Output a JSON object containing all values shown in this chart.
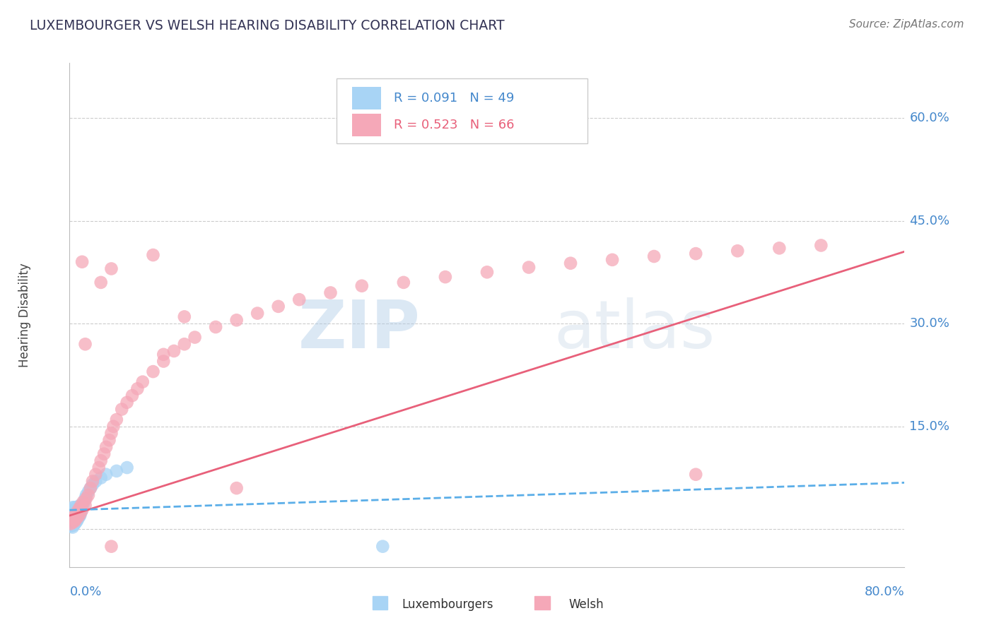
{
  "title": "LUXEMBOURGER VS WELSH HEARING DISABILITY CORRELATION CHART",
  "source": "Source: ZipAtlas.com",
  "ylabel": "Hearing Disability",
  "xlim": [
    0.0,
    0.8
  ],
  "ylim": [
    -0.055,
    0.68
  ],
  "yticks": [
    0.0,
    0.15,
    0.3,
    0.45,
    0.6
  ],
  "ytick_labels": [
    "",
    "15.0%",
    "30.0%",
    "45.0%",
    "60.0%"
  ],
  "luxembourgers_R": 0.091,
  "luxembourgers_N": 49,
  "welsh_R": 0.523,
  "welsh_N": 66,
  "color_lux": "#a8d4f5",
  "color_welsh": "#f5a8b8",
  "color_lux_line": "#5baee8",
  "color_welsh_line": "#e8607a",
  "color_text_blue": "#4488cc",
  "color_title": "#333355",
  "watermark_color": "#cce0f0",
  "background_color": "#ffffff",
  "grid_color": "#cccccc",
  "lux_scatter_x": [
    0.001,
    0.001,
    0.001,
    0.002,
    0.002,
    0.002,
    0.002,
    0.002,
    0.003,
    0.003,
    0.003,
    0.003,
    0.003,
    0.003,
    0.004,
    0.004,
    0.004,
    0.004,
    0.005,
    0.005,
    0.005,
    0.005,
    0.006,
    0.006,
    0.006,
    0.007,
    0.007,
    0.007,
    0.008,
    0.008,
    0.009,
    0.009,
    0.01,
    0.01,
    0.011,
    0.012,
    0.013,
    0.014,
    0.015,
    0.016,
    0.018,
    0.02,
    0.022,
    0.025,
    0.03,
    0.035,
    0.045,
    0.055,
    0.3
  ],
  "lux_scatter_y": [
    0.005,
    0.01,
    0.015,
    0.005,
    0.008,
    0.012,
    0.018,
    0.025,
    0.003,
    0.008,
    0.012,
    0.018,
    0.025,
    0.032,
    0.006,
    0.012,
    0.018,
    0.028,
    0.008,
    0.015,
    0.022,
    0.032,
    0.01,
    0.018,
    0.028,
    0.012,
    0.02,
    0.032,
    0.015,
    0.025,
    0.018,
    0.03,
    0.02,
    0.035,
    0.025,
    0.03,
    0.035,
    0.04,
    0.045,
    0.05,
    0.055,
    0.06,
    0.065,
    0.07,
    0.075,
    0.08,
    0.085,
    0.09,
    -0.025
  ],
  "welsh_scatter_x": [
    0.001,
    0.002,
    0.003,
    0.004,
    0.005,
    0.005,
    0.006,
    0.007,
    0.008,
    0.009,
    0.01,
    0.011,
    0.012,
    0.013,
    0.015,
    0.016,
    0.018,
    0.02,
    0.022,
    0.025,
    0.028,
    0.03,
    0.033,
    0.035,
    0.038,
    0.04,
    0.042,
    0.045,
    0.05,
    0.055,
    0.06,
    0.065,
    0.07,
    0.08,
    0.09,
    0.1,
    0.11,
    0.12,
    0.14,
    0.16,
    0.18,
    0.2,
    0.22,
    0.25,
    0.28,
    0.32,
    0.36,
    0.4,
    0.44,
    0.48,
    0.52,
    0.56,
    0.6,
    0.64,
    0.68,
    0.72,
    0.04,
    0.08,
    0.04,
    0.6,
    0.16,
    0.015,
    0.09,
    0.11,
    0.012,
    0.03
  ],
  "welsh_scatter_y": [
    0.008,
    0.015,
    0.01,
    0.018,
    0.012,
    0.02,
    0.015,
    0.025,
    0.018,
    0.03,
    0.022,
    0.035,
    0.028,
    0.04,
    0.035,
    0.045,
    0.05,
    0.06,
    0.07,
    0.08,
    0.09,
    0.1,
    0.11,
    0.12,
    0.13,
    0.14,
    0.15,
    0.16,
    0.175,
    0.185,
    0.195,
    0.205,
    0.215,
    0.23,
    0.245,
    0.26,
    0.27,
    0.28,
    0.295,
    0.305,
    0.315,
    0.325,
    0.335,
    0.345,
    0.355,
    0.36,
    0.368,
    0.375,
    0.382,
    0.388,
    0.393,
    0.398,
    0.402,
    0.406,
    0.41,
    0.414,
    0.38,
    0.4,
    -0.025,
    0.08,
    0.06,
    0.27,
    0.255,
    0.31,
    0.39,
    0.36
  ],
  "lux_line_x": [
    0.0,
    0.8
  ],
  "lux_line_y": [
    0.028,
    0.068
  ],
  "welsh_line_x": [
    0.0,
    0.8
  ],
  "welsh_line_y": [
    0.02,
    0.405
  ]
}
